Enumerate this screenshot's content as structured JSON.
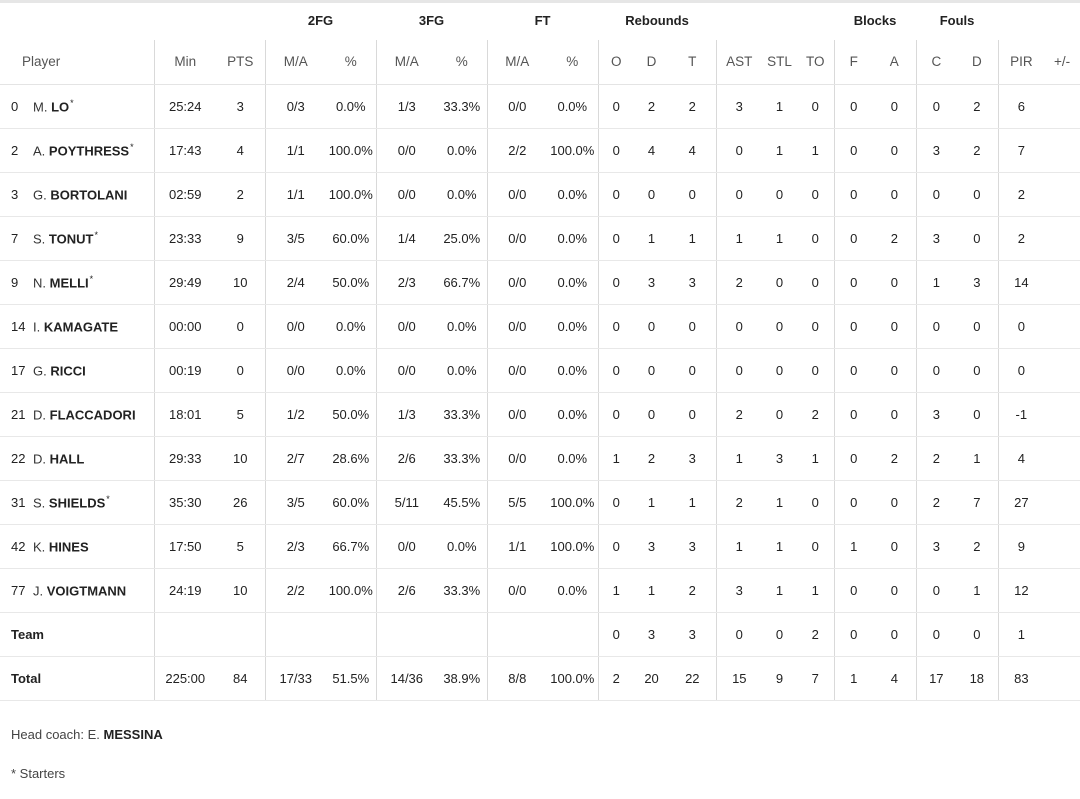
{
  "groups": {
    "fg2": "2FG",
    "fg3": "3FG",
    "ft": "FT",
    "rebounds": "Rebounds",
    "blocks": "Blocks",
    "fouls": "Fouls"
  },
  "columns": {
    "player": "Player",
    "min": "Min",
    "pts": "PTS",
    "fg2_ma": "M/A",
    "fg2_pct": "%",
    "fg3_ma": "M/A",
    "fg3_pct": "%",
    "ft_ma": "M/A",
    "ft_pct": "%",
    "reb_o": "O",
    "reb_d": "D",
    "reb_t": "T",
    "ast": "AST",
    "stl": "STL",
    "to": "TO",
    "blk_f": "F",
    "blk_a": "A",
    "foul_c": "C",
    "foul_d": "D",
    "pir": "PIR",
    "pm": "+/-"
  },
  "players": [
    {
      "num": "0",
      "init": "M.",
      "last": "LO",
      "star": "*",
      "min": "25:24",
      "pts": "3",
      "fg2_ma": "0/3",
      "fg2_pct": "0.0%",
      "fg3_ma": "1/3",
      "fg3_pct": "33.3%",
      "ft_ma": "0/0",
      "ft_pct": "0.0%",
      "reb_o": "0",
      "reb_d": "2",
      "reb_t": "2",
      "ast": "3",
      "stl": "1",
      "to": "0",
      "blk_f": "0",
      "blk_a": "0",
      "foul_c": "0",
      "foul_d": "2",
      "pir": "6",
      "pm": ""
    },
    {
      "num": "2",
      "init": "A.",
      "last": "POYTHRESS",
      "star": "*",
      "min": "17:43",
      "pts": "4",
      "fg2_ma": "1/1",
      "fg2_pct": "100.0%",
      "fg3_ma": "0/0",
      "fg3_pct": "0.0%",
      "ft_ma": "2/2",
      "ft_pct": "100.0%",
      "reb_o": "0",
      "reb_d": "4",
      "reb_t": "4",
      "ast": "0",
      "stl": "1",
      "to": "1",
      "blk_f": "0",
      "blk_a": "0",
      "foul_c": "3",
      "foul_d": "2",
      "pir": "7",
      "pm": ""
    },
    {
      "num": "3",
      "init": "G.",
      "last": "BORTOLANI",
      "star": "",
      "min": "02:59",
      "pts": "2",
      "fg2_ma": "1/1",
      "fg2_pct": "100.0%",
      "fg3_ma": "0/0",
      "fg3_pct": "0.0%",
      "ft_ma": "0/0",
      "ft_pct": "0.0%",
      "reb_o": "0",
      "reb_d": "0",
      "reb_t": "0",
      "ast": "0",
      "stl": "0",
      "to": "0",
      "blk_f": "0",
      "blk_a": "0",
      "foul_c": "0",
      "foul_d": "0",
      "pir": "2",
      "pm": ""
    },
    {
      "num": "7",
      "init": "S.",
      "last": "TONUT",
      "star": "*",
      "min": "23:33",
      "pts": "9",
      "fg2_ma": "3/5",
      "fg2_pct": "60.0%",
      "fg3_ma": "1/4",
      "fg3_pct": "25.0%",
      "ft_ma": "0/0",
      "ft_pct": "0.0%",
      "reb_o": "0",
      "reb_d": "1",
      "reb_t": "1",
      "ast": "1",
      "stl": "1",
      "to": "0",
      "blk_f": "0",
      "blk_a": "2",
      "foul_c": "3",
      "foul_d": "0",
      "pir": "2",
      "pm": ""
    },
    {
      "num": "9",
      "init": "N.",
      "last": "MELLI",
      "star": "*",
      "min": "29:49",
      "pts": "10",
      "fg2_ma": "2/4",
      "fg2_pct": "50.0%",
      "fg3_ma": "2/3",
      "fg3_pct": "66.7%",
      "ft_ma": "0/0",
      "ft_pct": "0.0%",
      "reb_o": "0",
      "reb_d": "3",
      "reb_t": "3",
      "ast": "2",
      "stl": "0",
      "to": "0",
      "blk_f": "0",
      "blk_a": "0",
      "foul_c": "1",
      "foul_d": "3",
      "pir": "14",
      "pm": ""
    },
    {
      "num": "14",
      "init": "I.",
      "last": "KAMAGATE",
      "star": "",
      "min": "00:00",
      "pts": "0",
      "fg2_ma": "0/0",
      "fg2_pct": "0.0%",
      "fg3_ma": "0/0",
      "fg3_pct": "0.0%",
      "ft_ma": "0/0",
      "ft_pct": "0.0%",
      "reb_o": "0",
      "reb_d": "0",
      "reb_t": "0",
      "ast": "0",
      "stl": "0",
      "to": "0",
      "blk_f": "0",
      "blk_a": "0",
      "foul_c": "0",
      "foul_d": "0",
      "pir": "0",
      "pm": ""
    },
    {
      "num": "17",
      "init": "G.",
      "last": "RICCI",
      "star": "",
      "min": "00:19",
      "pts": "0",
      "fg2_ma": "0/0",
      "fg2_pct": "0.0%",
      "fg3_ma": "0/0",
      "fg3_pct": "0.0%",
      "ft_ma": "0/0",
      "ft_pct": "0.0%",
      "reb_o": "0",
      "reb_d": "0",
      "reb_t": "0",
      "ast": "0",
      "stl": "0",
      "to": "0",
      "blk_f": "0",
      "blk_a": "0",
      "foul_c": "0",
      "foul_d": "0",
      "pir": "0",
      "pm": ""
    },
    {
      "num": "21",
      "init": "D.",
      "last": "FLACCADORI",
      "star": "",
      "min": "18:01",
      "pts": "5",
      "fg2_ma": "1/2",
      "fg2_pct": "50.0%",
      "fg3_ma": "1/3",
      "fg3_pct": "33.3%",
      "ft_ma": "0/0",
      "ft_pct": "0.0%",
      "reb_o": "0",
      "reb_d": "0",
      "reb_t": "0",
      "ast": "2",
      "stl": "0",
      "to": "2",
      "blk_f": "0",
      "blk_a": "0",
      "foul_c": "3",
      "foul_d": "0",
      "pir": "-1",
      "pm": ""
    },
    {
      "num": "22",
      "init": "D.",
      "last": "HALL",
      "star": "",
      "min": "29:33",
      "pts": "10",
      "fg2_ma": "2/7",
      "fg2_pct": "28.6%",
      "fg3_ma": "2/6",
      "fg3_pct": "33.3%",
      "ft_ma": "0/0",
      "ft_pct": "0.0%",
      "reb_o": "1",
      "reb_d": "2",
      "reb_t": "3",
      "ast": "1",
      "stl": "3",
      "to": "1",
      "blk_f": "0",
      "blk_a": "2",
      "foul_c": "2",
      "foul_d": "1",
      "pir": "4",
      "pm": ""
    },
    {
      "num": "31",
      "init": "S.",
      "last": "SHIELDS",
      "star": "*",
      "min": "35:30",
      "pts": "26",
      "fg2_ma": "3/5",
      "fg2_pct": "60.0%",
      "fg3_ma": "5/11",
      "fg3_pct": "45.5%",
      "ft_ma": "5/5",
      "ft_pct": "100.0%",
      "reb_o": "0",
      "reb_d": "1",
      "reb_t": "1",
      "ast": "2",
      "stl": "1",
      "to": "0",
      "blk_f": "0",
      "blk_a": "0",
      "foul_c": "2",
      "foul_d": "7",
      "pir": "27",
      "pm": ""
    },
    {
      "num": "42",
      "init": "K.",
      "last": "HINES",
      "star": "",
      "min": "17:50",
      "pts": "5",
      "fg2_ma": "2/3",
      "fg2_pct": "66.7%",
      "fg3_ma": "0/0",
      "fg3_pct": "0.0%",
      "ft_ma": "1/1",
      "ft_pct": "100.0%",
      "reb_o": "0",
      "reb_d": "3",
      "reb_t": "3",
      "ast": "1",
      "stl": "1",
      "to": "0",
      "blk_f": "1",
      "blk_a": "0",
      "foul_c": "3",
      "foul_d": "2",
      "pir": "9",
      "pm": ""
    },
    {
      "num": "77",
      "init": "J.",
      "last": "VOIGTMANN",
      "star": "",
      "min": "24:19",
      "pts": "10",
      "fg2_ma": "2/2",
      "fg2_pct": "100.0%",
      "fg3_ma": "2/6",
      "fg3_pct": "33.3%",
      "ft_ma": "0/0",
      "ft_pct": "0.0%",
      "reb_o": "1",
      "reb_d": "1",
      "reb_t": "2",
      "ast": "3",
      "stl": "1",
      "to": "1",
      "blk_f": "0",
      "blk_a": "0",
      "foul_c": "0",
      "foul_d": "1",
      "pir": "12",
      "pm": ""
    }
  ],
  "team": {
    "label": "Team",
    "min": "",
    "pts": "",
    "fg2_ma": "",
    "fg2_pct": "",
    "fg3_ma": "",
    "fg3_pct": "",
    "ft_ma": "",
    "ft_pct": "",
    "reb_o": "0",
    "reb_d": "3",
    "reb_t": "3",
    "ast": "0",
    "stl": "0",
    "to": "2",
    "blk_f": "0",
    "blk_a": "0",
    "foul_c": "0",
    "foul_d": "0",
    "pir": "1",
    "pm": ""
  },
  "total": {
    "label": "Total",
    "min": "225:00",
    "pts": "84",
    "fg2_ma": "17/33",
    "fg2_pct": "51.5%",
    "fg3_ma": "14/36",
    "fg3_pct": "38.9%",
    "ft_ma": "8/8",
    "ft_pct": "100.0%",
    "reb_o": "2",
    "reb_d": "20",
    "reb_t": "22",
    "ast": "15",
    "stl": "9",
    "to": "7",
    "blk_f": "1",
    "blk_a": "4",
    "foul_c": "17",
    "foul_d": "18",
    "pir": "83",
    "pm": ""
  },
  "footer": {
    "coach_label": "Head coach: E.",
    "coach_last": "MESSINA",
    "starters_note": "* Starters"
  }
}
